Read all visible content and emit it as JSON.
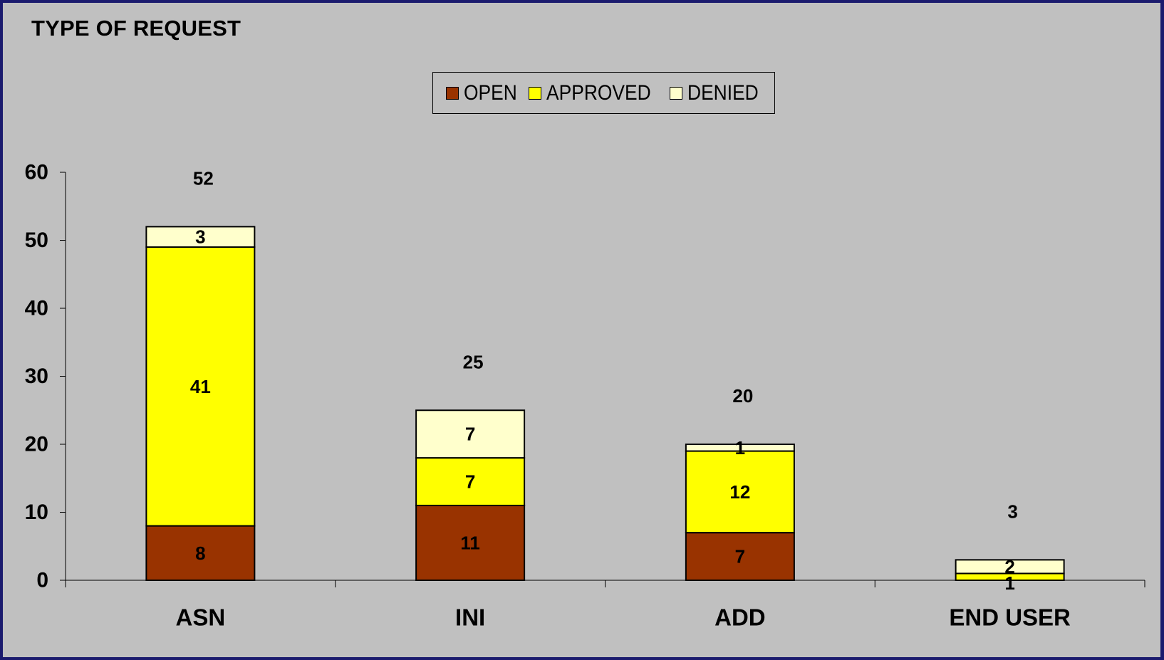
{
  "chart_data": {
    "type": "bar",
    "stacked": true,
    "title": "TYPE OF REQUEST",
    "categories": [
      "ASN",
      "INI",
      "ADD",
      "END USER"
    ],
    "series": [
      {
        "name": "OPEN",
        "color": "#993300",
        "values": [
          8,
          11,
          7,
          0
        ]
      },
      {
        "name": "APPROVED",
        "color": "#ffff00",
        "values": [
          41,
          7,
          12,
          1
        ]
      },
      {
        "name": "DENIED",
        "color": "#ffffcc",
        "values": [
          3,
          7,
          1,
          2
        ]
      }
    ],
    "series_labels": [
      [
        "8",
        "11",
        "7",
        ""
      ],
      [
        "41",
        "7",
        "12",
        "1"
      ],
      [
        "3",
        "7",
        "1",
        "2"
      ]
    ],
    "totals": [
      52,
      25,
      20,
      3
    ],
    "total_labels": [
      "52",
      "25",
      "20",
      "3"
    ],
    "ylim": [
      0,
      60
    ],
    "yticks": [
      0,
      10,
      20,
      30,
      40,
      50,
      60
    ],
    "ytick_labels": [
      "0",
      "10",
      "20",
      "30",
      "40",
      "50",
      "60"
    ],
    "xlabel": "",
    "ylabel": "",
    "legend_position": "top-center",
    "grid": false,
    "background": "#c0c0c0",
    "frame_color": "#1b1b6e"
  }
}
